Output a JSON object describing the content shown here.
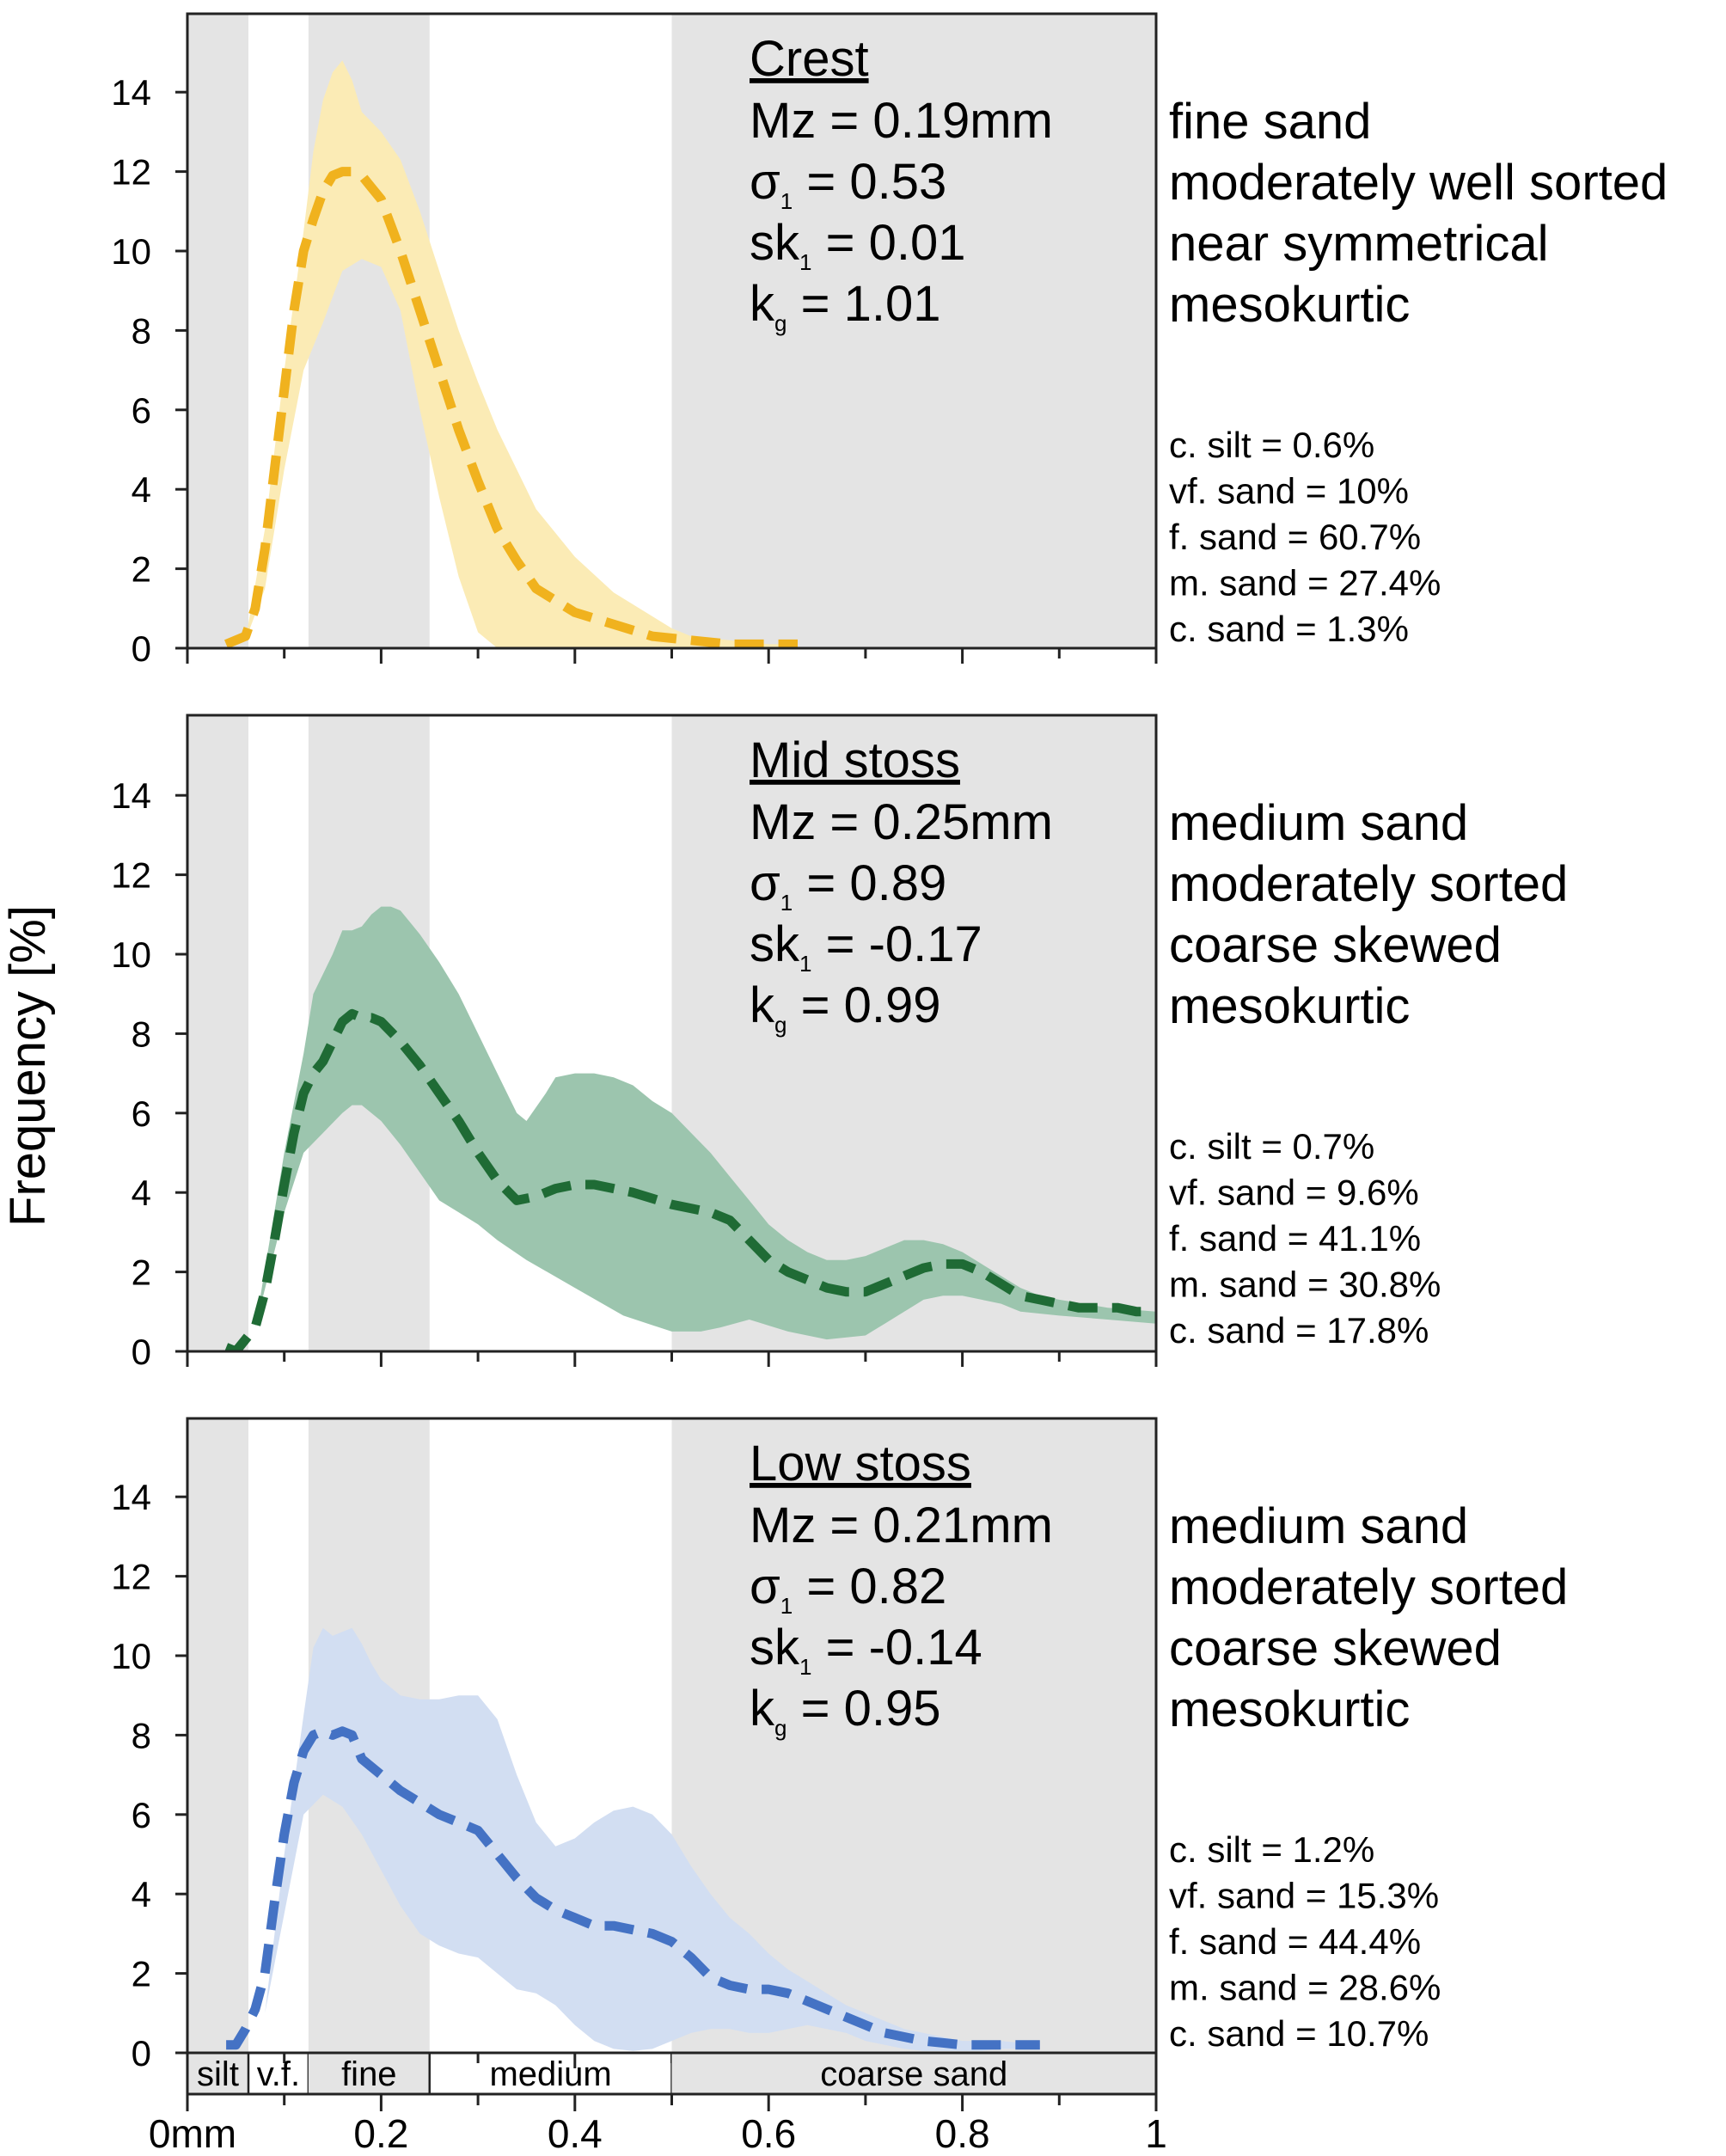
{
  "figure": {
    "ylabel": "Frequency [%]",
    "x_tick_labels": [
      "0mm",
      "0.2",
      "0.4",
      "0.6",
      "0.8",
      "1"
    ],
    "y_tick_labels": [
      "0",
      "2",
      "4",
      "6",
      "8",
      "10",
      "12",
      "14"
    ],
    "grain_classes": [
      {
        "label": "silt",
        "x0": 0.0,
        "x1": 0.063,
        "shaded": true
      },
      {
        "label": "v.f.",
        "x0": 0.063,
        "x1": 0.125,
        "shaded": false
      },
      {
        "label": "fine",
        "x0": 0.125,
        "x1": 0.25,
        "shaded": true
      },
      {
        "label": "medium",
        "x0": 0.25,
        "x1": 0.5,
        "shaded": false
      },
      {
        "label": "coarse sand",
        "x0": 0.5,
        "x1": 1.0,
        "shaded": true
      }
    ]
  },
  "chart_data": [
    {
      "type": "area",
      "title": "Crest",
      "stats": [
        "Mz = 0.19mm",
        "σ1 = 0.53",
        "sk1 = 0.01",
        "kg = 1.01"
      ],
      "classification": [
        "fine sand",
        "moderately well sorted",
        "near symmetrical",
        "mesokurtic"
      ],
      "composition": [
        "c. silt = 0.6%",
        "vf. sand = 10%",
        "f. sand = 60.7%",
        "m. sand = 27.4%",
        "c. sand = 1.3%"
      ],
      "xlim": [
        0,
        1
      ],
      "ylim": [
        0,
        16
      ],
      "line_color": "#F0B21E",
      "band_color": "#FBEBB5",
      "series": [
        {
          "x": [
            0.04,
            0.06,
            0.07,
            0.08,
            0.09,
            0.1,
            0.11,
            0.12,
            0.13,
            0.14,
            0.15,
            0.16,
            0.17,
            0.18,
            0.19,
            0.2,
            0.22,
            0.24,
            0.26,
            0.28,
            0.3,
            0.32,
            0.34,
            0.36,
            0.4,
            0.44,
            0.48,
            0.52,
            0.56,
            0.6,
            0.63
          ],
          "y": [
            0.1,
            0.3,
            1.0,
            2.5,
            4.5,
            6.5,
            8.5,
            10.0,
            10.8,
            11.5,
            11.9,
            12.0,
            12.0,
            11.9,
            11.6,
            11.3,
            10.0,
            8.5,
            7.0,
            5.5,
            4.2,
            3.0,
            2.2,
            1.5,
            0.9,
            0.6,
            0.3,
            0.2,
            0.1,
            0.1,
            0.1
          ]
        },
        {
          "x": [
            0.06,
            0.08,
            0.1,
            0.12,
            0.13,
            0.14,
            0.15,
            0.16,
            0.17,
            0.18,
            0.2,
            0.22,
            0.24,
            0.26,
            0.28,
            0.3,
            0.32,
            0.34,
            0.36,
            0.4,
            0.44,
            0.48,
            0.5,
            0.52,
            0.56,
            0.6,
            0.63
          ],
          "y": [
            0.2,
            3.0,
            7.0,
            10.5,
            12.5,
            13.8,
            14.5,
            14.8,
            14.3,
            13.5,
            13.0,
            12.3,
            11.0,
            9.5,
            8.0,
            6.7,
            5.5,
            4.5,
            3.5,
            2.3,
            1.4,
            0.8,
            0.5,
            0.3,
            0.2,
            0.1,
            0.1
          ]
        },
        {
          "x": [
            0.06,
            0.08,
            0.1,
            0.12,
            0.14,
            0.16,
            0.18,
            0.2,
            0.22,
            0.24,
            0.26,
            0.28,
            0.3,
            0.32,
            0.34,
            0.36,
            0.63
          ],
          "y": [
            0.2,
            1.5,
            4.5,
            7.0,
            8.2,
            9.5,
            9.8,
            9.6,
            8.5,
            6.0,
            3.8,
            1.8,
            0.4,
            0.0,
            0.0,
            0.0,
            0.0
          ]
        }
      ]
    },
    {
      "type": "area",
      "title": "Mid stoss",
      "stats": [
        "Mz = 0.25mm",
        "σ1 = 0.89",
        "sk1 = -0.17",
        "kg = 0.99"
      ],
      "classification": [
        "medium sand",
        "moderately sorted",
        "coarse skewed",
        "mesokurtic"
      ],
      "composition": [
        "c. silt = 0.7%",
        "vf. sand = 9.6%",
        "f. sand = 41.1%",
        "m. sand = 30.8%",
        "c. sand = 17.8%"
      ],
      "xlim": [
        0,
        1
      ],
      "ylim": [
        0,
        16
      ],
      "line_color": "#1F6B35",
      "band_color": "#9CC5AE",
      "series": [
        {
          "x": [
            0.04,
            0.05,
            0.06,
            0.07,
            0.08,
            0.09,
            0.1,
            0.11,
            0.12,
            0.13,
            0.14,
            0.15,
            0.16,
            0.17,
            0.18,
            0.19,
            0.2,
            0.22,
            0.24,
            0.26,
            0.28,
            0.3,
            0.32,
            0.34,
            0.36,
            0.38,
            0.4,
            0.42,
            0.44,
            0.46,
            0.5,
            0.54,
            0.56,
            0.58,
            0.6,
            0.62,
            0.64,
            0.66,
            0.68,
            0.7,
            0.72,
            0.74,
            0.76,
            0.78,
            0.8,
            0.82,
            0.84,
            0.86,
            0.88,
            0.9,
            0.92,
            0.94,
            0.96,
            0.98,
            1.0
          ],
          "y": [
            0.1,
            0.0,
            0.3,
            0.6,
            1.5,
            2.8,
            4.2,
            5.5,
            6.5,
            7.0,
            7.3,
            7.8,
            8.3,
            8.5,
            8.4,
            8.4,
            8.3,
            7.8,
            7.2,
            6.5,
            5.8,
            5.0,
            4.3,
            3.8,
            3.9,
            4.1,
            4.2,
            4.2,
            4.1,
            4.0,
            3.7,
            3.5,
            3.3,
            2.8,
            2.3,
            2.0,
            1.8,
            1.6,
            1.5,
            1.5,
            1.7,
            1.9,
            2.1,
            2.2,
            2.2,
            2.0,
            1.7,
            1.4,
            1.3,
            1.2,
            1.1,
            1.1,
            1.1,
            1.0,
            1.0
          ]
        },
        {
          "x": [
            0.07,
            0.1,
            0.12,
            0.13,
            0.14,
            0.15,
            0.16,
            0.17,
            0.18,
            0.19,
            0.2,
            0.21,
            0.22,
            0.23,
            0.24,
            0.26,
            0.28,
            0.3,
            0.32,
            0.34,
            0.35,
            0.37,
            0.38,
            0.4,
            0.42,
            0.44,
            0.46,
            0.48,
            0.5,
            0.52,
            0.54,
            0.56,
            0.58,
            0.6,
            0.62,
            0.64,
            0.66,
            0.68,
            0.7,
            0.72,
            0.74,
            0.76,
            0.78,
            0.8,
            0.82,
            0.84,
            0.86,
            0.88,
            0.9,
            0.95,
            1.0
          ],
          "y": [
            0.6,
            5.0,
            7.5,
            9.0,
            9.5,
            10.0,
            10.6,
            10.6,
            10.7,
            11.0,
            11.2,
            11.2,
            11.1,
            10.8,
            10.5,
            9.8,
            9.0,
            8.0,
            7.0,
            6.0,
            5.8,
            6.5,
            6.9,
            7.0,
            7.0,
            6.9,
            6.7,
            6.3,
            6.0,
            5.5,
            5.0,
            4.4,
            3.8,
            3.2,
            2.8,
            2.5,
            2.3,
            2.3,
            2.4,
            2.6,
            2.8,
            2.8,
            2.7,
            2.5,
            2.2,
            1.9,
            1.6,
            1.4,
            1.3,
            1.1,
            1.0
          ]
        },
        {
          "x": [
            0.07,
            0.1,
            0.12,
            0.14,
            0.16,
            0.17,
            0.18,
            0.19,
            0.2,
            0.22,
            0.24,
            0.26,
            0.28,
            0.3,
            0.32,
            0.35,
            0.4,
            0.45,
            0.5,
            0.53,
            0.55,
            0.58,
            0.62,
            0.66,
            0.7,
            0.72,
            0.74,
            0.76,
            0.78,
            0.8,
            0.82,
            0.84,
            0.86,
            0.9,
            0.95,
            1.0
          ],
          "y": [
            0.6,
            3.5,
            5.0,
            5.5,
            6.0,
            6.2,
            6.2,
            6.0,
            5.8,
            5.2,
            4.5,
            3.8,
            3.5,
            3.2,
            2.8,
            2.3,
            1.6,
            0.9,
            0.5,
            0.5,
            0.6,
            0.8,
            0.5,
            0.3,
            0.4,
            0.7,
            1.0,
            1.3,
            1.4,
            1.4,
            1.3,
            1.2,
            1.0,
            0.9,
            0.8,
            0.7
          ]
        }
      ]
    },
    {
      "type": "area",
      "title": "Low stoss",
      "stats": [
        "Mz = 0.21mm",
        "σ1 = 0.82",
        "sk1 = -0.14",
        "kg = 0.95"
      ],
      "classification": [
        "medium sand",
        "moderately sorted",
        "coarse skewed",
        "mesokurtic"
      ],
      "composition": [
        "c. silt = 1.2%",
        "vf. sand = 15.3%",
        "f. sand = 44.4%",
        "m. sand = 28.6%",
        "c. sand = 10.7%"
      ],
      "xlim": [
        0,
        1
      ],
      "ylim": [
        0,
        16
      ],
      "line_color": "#4472C4",
      "band_color": "#D2DEF2",
      "series": [
        {
          "x": [
            0.04,
            0.05,
            0.06,
            0.07,
            0.08,
            0.09,
            0.1,
            0.11,
            0.12,
            0.13,
            0.14,
            0.15,
            0.16,
            0.17,
            0.18,
            0.2,
            0.22,
            0.24,
            0.26,
            0.28,
            0.3,
            0.32,
            0.34,
            0.36,
            0.38,
            0.4,
            0.42,
            0.44,
            0.46,
            0.48,
            0.5,
            0.52,
            0.54,
            0.56,
            0.58,
            0.6,
            0.62,
            0.64,
            0.66,
            0.68,
            0.7,
            0.72,
            0.74,
            0.76,
            0.78,
            0.8,
            0.82,
            0.84,
            0.86,
            0.88
          ],
          "y": [
            0.2,
            0.2,
            0.6,
            1.1,
            2.0,
            3.8,
            5.5,
            6.8,
            7.6,
            8.0,
            8.1,
            8.0,
            8.1,
            8.0,
            7.4,
            7.0,
            6.6,
            6.3,
            6.0,
            5.8,
            5.6,
            5.0,
            4.4,
            3.9,
            3.6,
            3.4,
            3.2,
            3.2,
            3.1,
            3.0,
            2.8,
            2.4,
            1.9,
            1.7,
            1.6,
            1.6,
            1.5,
            1.3,
            1.1,
            0.9,
            0.7,
            0.5,
            0.4,
            0.3,
            0.25,
            0.2,
            0.2,
            0.2,
            0.2,
            0.2
          ]
        },
        {
          "x": [
            0.08,
            0.1,
            0.12,
            0.13,
            0.14,
            0.15,
            0.16,
            0.17,
            0.18,
            0.19,
            0.2,
            0.22,
            0.24,
            0.26,
            0.28,
            0.3,
            0.32,
            0.34,
            0.36,
            0.38,
            0.4,
            0.42,
            0.44,
            0.46,
            0.48,
            0.5,
            0.52,
            0.54,
            0.56,
            0.58,
            0.6,
            0.62,
            0.64,
            0.66,
            0.68,
            0.7,
            0.72,
            0.74,
            0.76,
            0.78,
            0.8,
            0.82,
            0.84,
            0.86,
            0.88
          ],
          "y": [
            1.0,
            5.0,
            8.5,
            10.2,
            10.7,
            10.5,
            10.6,
            10.7,
            10.3,
            9.8,
            9.4,
            9.0,
            8.9,
            8.9,
            9.0,
            9.0,
            8.4,
            7.0,
            5.8,
            5.2,
            5.4,
            5.8,
            6.1,
            6.2,
            6.0,
            5.5,
            4.7,
            4.0,
            3.4,
            3.0,
            2.5,
            2.1,
            1.8,
            1.5,
            1.2,
            1.0,
            0.8,
            0.6,
            0.5,
            0.4,
            0.3,
            0.3,
            0.3,
            0.25,
            0.2
          ]
        },
        {
          "x": [
            0.08,
            0.1,
            0.12,
            0.14,
            0.16,
            0.18,
            0.2,
            0.22,
            0.24,
            0.26,
            0.28,
            0.3,
            0.32,
            0.34,
            0.36,
            0.38,
            0.4,
            0.42,
            0.44,
            0.46,
            0.48,
            0.5,
            0.52,
            0.54,
            0.56,
            0.58,
            0.6,
            0.62,
            0.64,
            0.66,
            0.68,
            0.7,
            0.72,
            0.74,
            0.76,
            0.78,
            0.8,
            0.82,
            0.84,
            0.86,
            0.88
          ],
          "y": [
            1.0,
            3.5,
            6.0,
            6.5,
            6.2,
            5.5,
            4.6,
            3.7,
            3.0,
            2.7,
            2.5,
            2.4,
            2.0,
            1.6,
            1.5,
            1.2,
            0.7,
            0.3,
            0.1,
            0.05,
            0.1,
            0.3,
            0.5,
            0.6,
            0.6,
            0.5,
            0.5,
            0.6,
            0.7,
            0.6,
            0.5,
            0.3,
            0.2,
            0.1,
            0.05,
            0.05,
            0.05,
            0.05,
            0.1,
            0.1,
            0.1
          ]
        }
      ]
    }
  ]
}
